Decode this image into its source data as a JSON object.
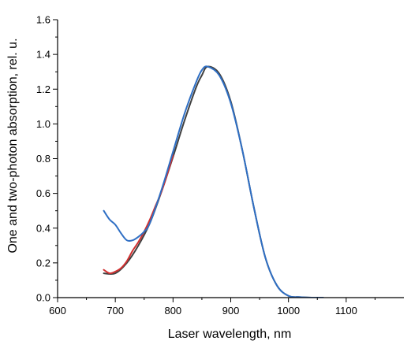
{
  "chart_data": {
    "type": "line",
    "xlabel": "Laser wavelength, nm",
    "ylabel": "One and two-photon absorption, rel. u.",
    "xlim": [
      600,
      1200
    ],
    "ylim": [
      0.0,
      1.6
    ],
    "x_ticks": [
      600,
      700,
      800,
      900,
      1000,
      1100
    ],
    "x_tick_labels": [
      "600",
      "700",
      "800",
      "900",
      "1000",
      "1100"
    ],
    "y_ticks": [
      0.0,
      0.2,
      0.4,
      0.6,
      0.8,
      1.0,
      1.2,
      1.4,
      1.6
    ],
    "y_tick_labels": [
      "0.0",
      "0.2",
      "0.4",
      "0.6",
      "0.8",
      "1.0",
      "1.2",
      "1.4",
      "1.6"
    ],
    "grid": false,
    "legend": "none",
    "series": [
      {
        "color": "#404040",
        "x": [
          680,
          700,
          720,
          740,
          760,
          780,
          800,
          820,
          840,
          850,
          860,
          880,
          900,
          920,
          940,
          960,
          980,
          1000,
          1020,
          1040,
          1060
        ],
        "y": [
          0.14,
          0.14,
          0.2,
          0.3,
          0.43,
          0.61,
          0.81,
          1.02,
          1.21,
          1.28,
          1.33,
          1.29,
          1.13,
          0.85,
          0.52,
          0.23,
          0.07,
          0.01,
          0.003,
          0.0,
          0.0
        ]
      },
      {
        "color": "#d03030",
        "x": [
          680,
          690,
          700,
          710,
          720,
          730,
          740,
          750,
          760,
          770,
          780,
          790,
          800
        ],
        "y": [
          0.16,
          0.14,
          0.15,
          0.17,
          0.21,
          0.27,
          0.32,
          0.38,
          0.45,
          0.53,
          0.61,
          0.71,
          0.82
        ]
      },
      {
        "color": "#2f6fc4",
        "x": [
          680,
          690,
          700,
          710,
          720,
          730,
          740,
          750,
          760,
          780,
          800,
          820,
          840,
          850,
          860,
          880,
          900,
          920,
          940,
          960,
          980,
          1000,
          1020,
          1040,
          1060
        ],
        "y": [
          0.5,
          0.45,
          0.42,
          0.37,
          0.33,
          0.33,
          0.35,
          0.38,
          0.43,
          0.62,
          0.84,
          1.06,
          1.24,
          1.31,
          1.33,
          1.28,
          1.12,
          0.85,
          0.52,
          0.23,
          0.07,
          0.01,
          0.003,
          0.0,
          0.0
        ]
      }
    ]
  }
}
